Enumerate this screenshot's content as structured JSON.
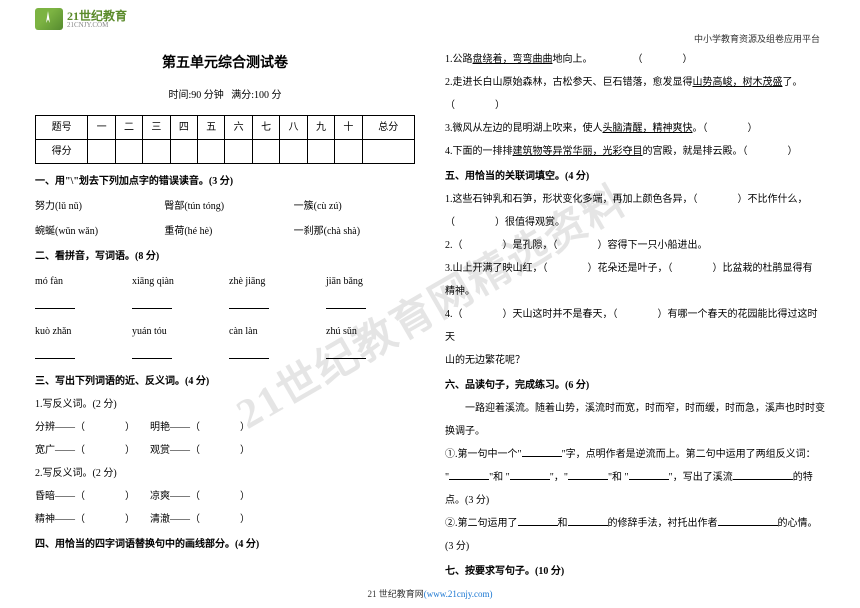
{
  "watermark": "21世纪教育网精选资料",
  "logo": {
    "main": "21世纪教育",
    "sub": "21CNJY.COM"
  },
  "header_right": "中小学教育资源及组卷应用平台",
  "title": "第五单元综合测试卷",
  "subtitle_time": "时间:90 分钟",
  "subtitle_score": "满分:100 分",
  "score_table": {
    "headers": [
      "题号",
      "一",
      "二",
      "三",
      "四",
      "五",
      "六",
      "七",
      "八",
      "九",
      "十",
      "总分"
    ],
    "row_label": "得分"
  },
  "sections": {
    "s1": {
      "heading": "一、用\"\\\"划去下列加点字的错误读音。(3 分)",
      "items": [
        {
          "a": "努力(lǔ  nǔ)",
          "b": "臀部(tún tóng)",
          "c": "一簇(cù  zú)"
        },
        {
          "a": "蜿蜒(wǔn  wǎn)",
          "b": "重荷(hé  hè)",
          "c": "一刹那(chà  shà)"
        }
      ]
    },
    "s2": {
      "heading": "二、看拼音，写词语。(8 分)",
      "rows": [
        [
          "mó  fàn",
          "xiāng qiàn",
          "zhè  jiāng",
          "jiān bǎng"
        ],
        [
          "kuò zhǎn",
          "yuán tóu",
          "càn  làn",
          "zhú  sǔn"
        ]
      ]
    },
    "s3": {
      "heading": "三、写出下列词语的近、反义词。(4 分)",
      "sub1": "1.写反义词。(2 分)",
      "row1a": {
        "a": "分辨——（",
        "b": "明艳——（"
      },
      "row1b": {
        "a": "宽广——（",
        "b": "观赏——（"
      },
      "sub2": "2.写反义词。(2 分)",
      "row2a": {
        "a": "昏暗——（",
        "b": "凉爽——（"
      },
      "row2b": {
        "a": "精神——（",
        "b": "清澈——（"
      }
    },
    "s4": {
      "heading": "四、用恰当的四字词语替换句中的画线部分。(4 分)",
      "items": [
        "1.公路盘绕着，弯弯曲曲地向上。",
        "2.走进长白山原始森林，古松参天、巨石错落，愈发显得山势高峻，树木茂盛了。",
        "3.微风从左边的昆明湖上吹来，使人头脑清醒，精神爽快。",
        "4.下面的一排排建筑物等异常华丽，光彩夺目的宫殿，就是排云殿。（"
      ]
    },
    "s5": {
      "heading": "五、用恰当的关联词填空。(4 分)",
      "items": [
        "1.这些石钟乳和石笋，形状变化多端，再加上颜色各异，（",
        "）很值得观赏。",
        "2.（",
        "）是孔隙，（",
        "）容得下一只小船进出。",
        "3.山上开满了映山红，（",
        "）花朵还是叶子，（",
        "）比盆栽的杜鹃显得有",
        "精神。",
        "4.（",
        "）天山这时并不是春天，（",
        "）有哪一个春天的花园能比得过这时天",
        "山的无边繁花呢？"
      ]
    },
    "s6": {
      "heading": "六、品读句子，完成练习。(6 分)",
      "intro": "一路迎着溪流。随着山势，溪流时而宽，时而窄，时而缓，时而急，溪声也时时变换调子。",
      "q1": "①.第一句中一个\"",
      "q1_mid": "\"字，点明作者是逆流而上。第二句中运用了两组反义词：",
      "q1_end": "写出了溪流",
      "q1_tail": "的特点。(3 分)",
      "q2": "②.第二句运用了",
      "q2_mid": "和",
      "q2_mid2": "的修辞手法，衬托出作者",
      "q2_end": "的心情。",
      "q2_score": "(3 分)"
    },
    "s7": {
      "heading": "七、按要求写句子。(10 分)"
    }
  },
  "footer": {
    "text": "21 世纪教育网",
    "url": "(www.21cnjy.com)"
  },
  "paren_close": "）",
  "paren_open": "（"
}
